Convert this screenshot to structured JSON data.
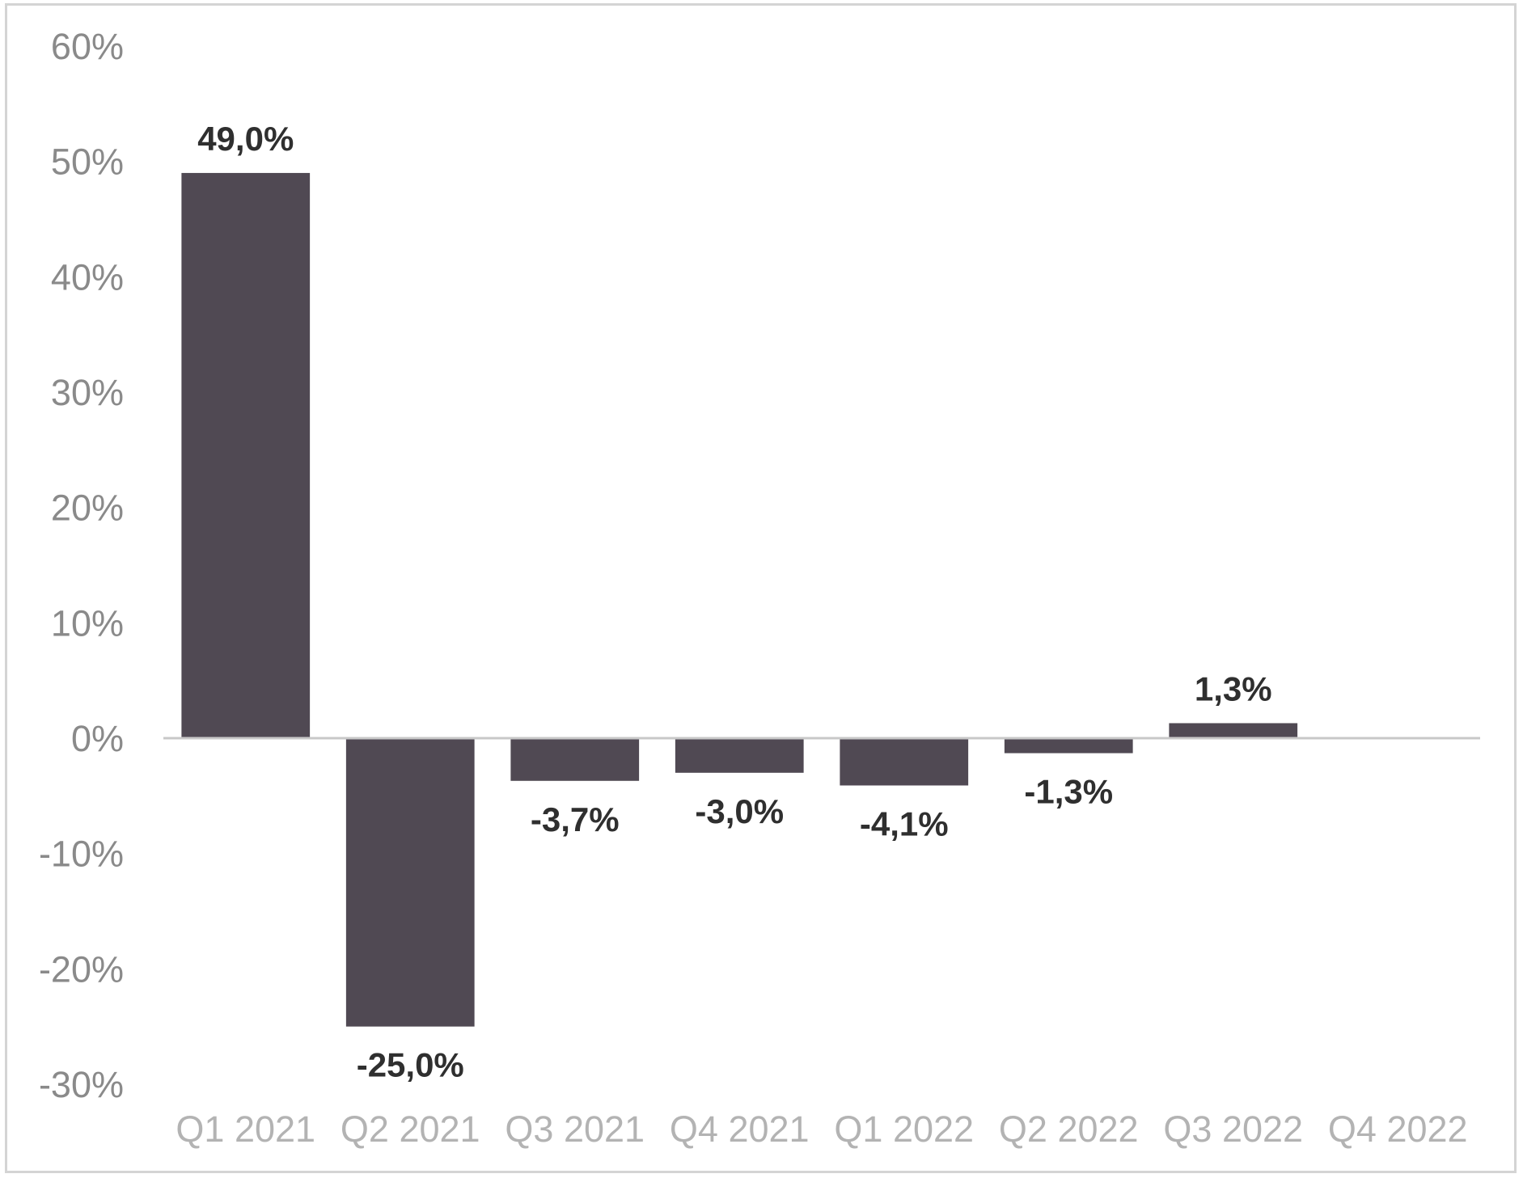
{
  "chart_data": {
    "type": "bar",
    "title": "",
    "xlabel": "",
    "ylabel": "",
    "categories": [
      "Q1 2021",
      "Q2 2021",
      "Q3 2021",
      "Q4 2021",
      "Q1 2022",
      "Q2 2022",
      "Q3 2022",
      "Q4 2022"
    ],
    "values": [
      49.0,
      -25.0,
      -3.7,
      -3.0,
      -4.1,
      -1.3,
      1.3,
      null
    ],
    "data_labels": [
      "49,0%",
      "-25,0%",
      "-3,7%",
      "-3,0%",
      "-4,1%",
      "-1,3%",
      "1,3%",
      ""
    ],
    "ylim": [
      -30,
      60
    ],
    "y_ticks": [
      60,
      50,
      40,
      30,
      20,
      10,
      0,
      -10,
      -20,
      -30
    ],
    "y_tick_labels": [
      "60%",
      "50%",
      "40%",
      "30%",
      "20%",
      "10%",
      "0%",
      "-10%",
      "-20%",
      "-30%"
    ],
    "grid": false,
    "legend": "none",
    "colors": {
      "bar": "#504953",
      "zero_line": "#c8c8c8",
      "y_tick_text": "#8a8a8a",
      "x_tick_text": "#b3b3b3",
      "data_label_text": "#2f2f2f",
      "frame": "#d4d4d4"
    }
  }
}
